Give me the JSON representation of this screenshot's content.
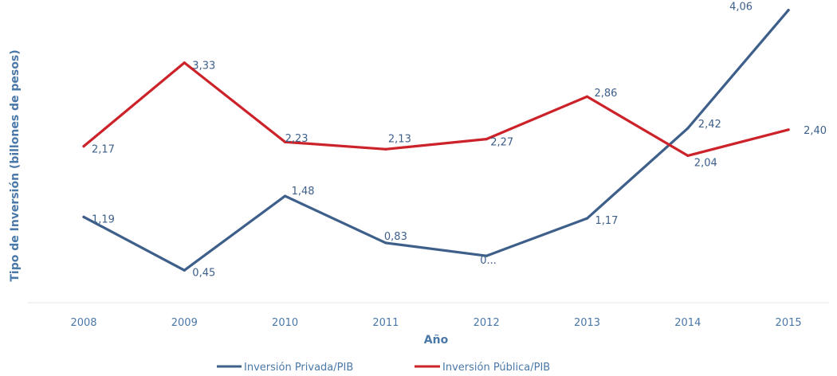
{
  "chart_data": {
    "type": "line",
    "title": "",
    "xlabel": "Año",
    "ylabel": "Tipo de Inversión (billones de pesos)",
    "categories": [
      "2008",
      "2009",
      "2010",
      "2011",
      "2012",
      "2013",
      "2014",
      "2015"
    ],
    "ylim": [
      0,
      4.2
    ],
    "grid": false,
    "legend_position": "bottom",
    "series": [
      {
        "name": "Inversión Privada/PIB",
        "color": "#3d5f8a",
        "values": [
          1.19,
          0.45,
          1.48,
          0.83,
          0.65,
          1.17,
          2.42,
          4.06
        ],
        "labels": [
          "1,19",
          "0,45",
          "1,48",
          "0,83",
          "0...",
          "1,17",
          "2,42",
          "4,06"
        ]
      },
      {
        "name": "Inversión Pública/PIB",
        "color": "#cc2229",
        "values": [
          2.17,
          3.33,
          2.23,
          2.13,
          2.27,
          2.86,
          2.04,
          2.4
        ],
        "labels": [
          "2,17",
          "3,33",
          "2,23",
          "2,13",
          "2,27",
          "2,86",
          "2,04",
          "2,40"
        ]
      }
    ]
  }
}
